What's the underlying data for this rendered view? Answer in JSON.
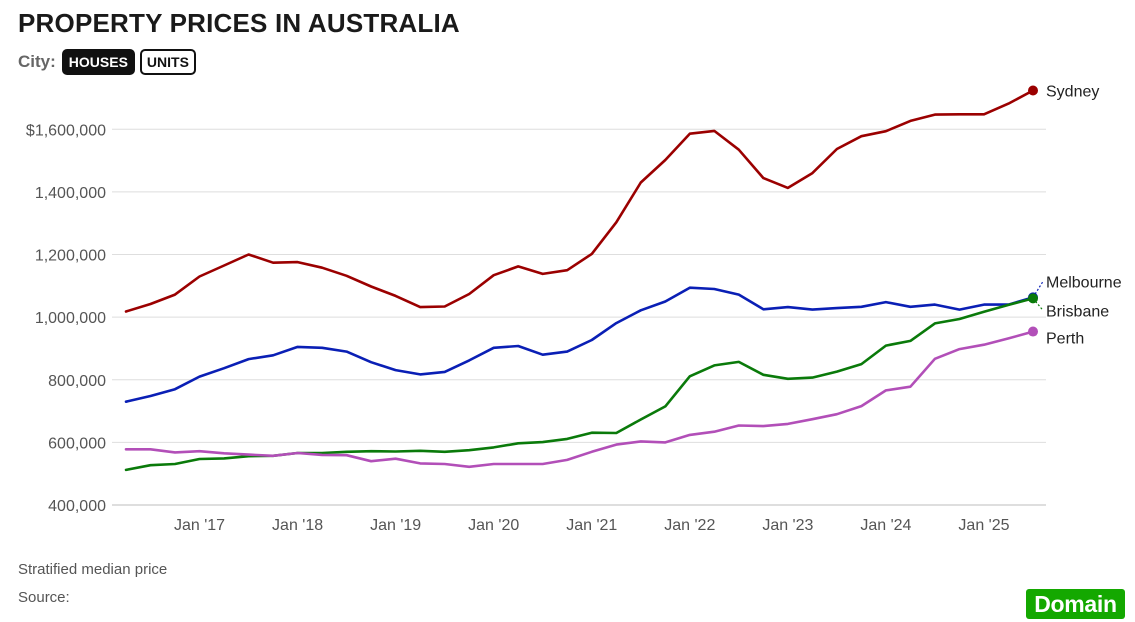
{
  "header": {
    "title": "PROPERTY PRICES IN AUSTRALIA",
    "city_label": "City:",
    "tabs": [
      {
        "label": "HOUSES",
        "active": true
      },
      {
        "label": "UNITS",
        "active": false
      }
    ]
  },
  "chart_data": {
    "type": "line",
    "title": "PROPERTY PRICES IN AUSTRALIA",
    "xlabel": "",
    "ylabel": "",
    "ylim": [
      400000,
      1700000
    ],
    "xlim": [
      2016.25,
      2025.5
    ],
    "yticks": [
      {
        "value": 400000,
        "label": "400,000"
      },
      {
        "value": 600000,
        "label": "600,000"
      },
      {
        "value": 800000,
        "label": "800,000"
      },
      {
        "value": 1000000,
        "label": "1,000,000"
      },
      {
        "value": 1200000,
        "label": "1,200,000"
      },
      {
        "value": 1400000,
        "label": "1,400,000"
      },
      {
        "value": 1600000,
        "label": "$1,600,000"
      }
    ],
    "xticks": [
      {
        "value": 2017,
        "label": "Jan '17"
      },
      {
        "value": 2018,
        "label": "Jan '18"
      },
      {
        "value": 2019,
        "label": "Jan '19"
      },
      {
        "value": 2020,
        "label": "Jan '20"
      },
      {
        "value": 2021,
        "label": "Jan '21"
      },
      {
        "value": 2022,
        "label": "Jan '22"
      },
      {
        "value": 2023,
        "label": "Jan '23"
      },
      {
        "value": 2024,
        "label": "Jan '24"
      },
      {
        "value": 2025,
        "label": "Jan '25"
      }
    ],
    "grid": true,
    "x": [
      2016.25,
      2016.5,
      2016.75,
      2017.0,
      2017.25,
      2017.5,
      2017.75,
      2018.0,
      2018.25,
      2018.5,
      2018.75,
      2019.0,
      2019.25,
      2019.5,
      2019.75,
      2020.0,
      2020.25,
      2020.5,
      2020.75,
      2021.0,
      2021.25,
      2021.5,
      2021.75,
      2022.0,
      2022.25,
      2022.5,
      2022.75,
      2023.0,
      2023.25,
      2023.5,
      2023.75,
      2024.0,
      2024.25,
      2024.5,
      2024.75,
      2025.0,
      2025.25,
      2025.5
    ],
    "series": [
      {
        "name": "Sydney",
        "color": "#9b0000",
        "values": [
          1018000,
          1042000,
          1072000,
          1130000,
          1165000,
          1200000,
          1174000,
          1176000,
          1158000,
          1132000,
          1098000,
          1068000,
          1032000,
          1034000,
          1074000,
          1134000,
          1162000,
          1138000,
          1150000,
          1202000,
          1303000,
          1430000,
          1502000,
          1586000,
          1595000,
          1535000,
          1444000,
          1413000,
          1460000,
          1537000,
          1578000,
          1594000,
          1627000,
          1647000,
          1648000,
          1648000,
          1682000,
          1724000
        ]
      },
      {
        "name": "Melbourne",
        "color": "#0a1fb5",
        "values": [
          730000,
          748000,
          770000,
          810000,
          837000,
          866000,
          878000,
          905000,
          902000,
          890000,
          856000,
          831000,
          817000,
          825000,
          862000,
          902000,
          908000,
          880000,
          890000,
          927000,
          981000,
          1022000,
          1050000,
          1094000,
          1090000,
          1072000,
          1025000,
          1032000,
          1024000,
          1029000,
          1033000,
          1048000,
          1033000,
          1040000,
          1024000,
          1040000,
          1040000,
          1063000
        ]
      },
      {
        "name": "Brisbane",
        "color": "#0a7a0a",
        "values": [
          512000,
          527000,
          531000,
          547000,
          549000,
          556000,
          557000,
          566000,
          566000,
          570000,
          572000,
          571000,
          573000,
          570000,
          575000,
          584000,
          597000,
          601000,
          611000,
          631000,
          630000,
          673000,
          715000,
          811000,
          846000,
          857000,
          816000,
          803000,
          807000,
          826000,
          850000,
          909000,
          924000,
          980000,
          994000,
          1017000,
          1039000,
          1060000
        ]
      },
      {
        "name": "Perth",
        "color": "#b24fb8",
        "values": [
          578000,
          578000,
          568000,
          572000,
          565000,
          561000,
          557000,
          566000,
          560000,
          559000,
          540000,
          548000,
          533000,
          531000,
          522000,
          531000,
          531000,
          531000,
          544000,
          570000,
          593000,
          603000,
          600000,
          624000,
          634000,
          654000,
          652000,
          659000,
          674000,
          690000,
          716000,
          766000,
          778000,
          867000,
          898000,
          912000,
          932000,
          954000
        ]
      }
    ],
    "series_labels": [
      {
        "name": "Sydney",
        "label": "Sydney"
      },
      {
        "name": "Melbourne",
        "label": "Melbourne"
      },
      {
        "name": "Brisbane",
        "label": "Brisbane"
      },
      {
        "name": "Perth",
        "label": "Perth"
      }
    ]
  },
  "footer": {
    "note": "Stratified median price",
    "source": "Source:",
    "logo_text": "Domain"
  }
}
